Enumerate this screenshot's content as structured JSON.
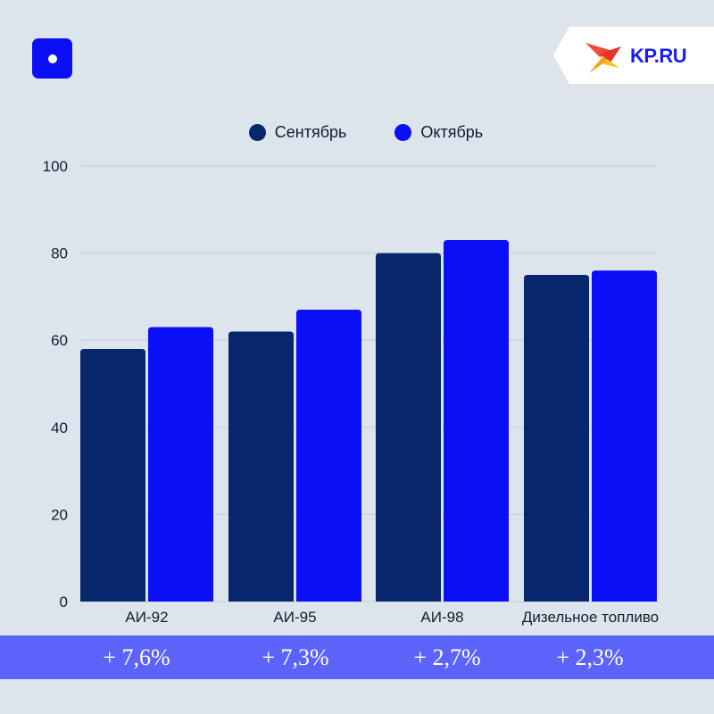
{
  "brand": {
    "logo_text": "KP.RU"
  },
  "colors": {
    "background": "#dde5ec",
    "september": "#07266b",
    "october": "#0a0ff5",
    "band": "#5b63f9"
  },
  "chart_data": {
    "type": "bar",
    "title": "",
    "xlabel": "",
    "ylabel": "",
    "ylim": [
      0,
      100
    ],
    "yticks": [
      0,
      20,
      40,
      60,
      80,
      100
    ],
    "grid": true,
    "legend_position": "top-center",
    "categories": [
      "АИ-92",
      "АИ-95",
      "АИ-98",
      "Дизельное топливо"
    ],
    "series": [
      {
        "name": "Сентябрь",
        "color": "#07266b",
        "values": [
          58,
          62,
          80,
          75
        ]
      },
      {
        "name": "Октябрь",
        "color": "#0a0ff5",
        "values": [
          63,
          67,
          83,
          76
        ]
      }
    ],
    "changes": [
      "+ 7,6%",
      "+ 7,3%",
      "+ 2,7%",
      "+ 2,3%"
    ]
  }
}
